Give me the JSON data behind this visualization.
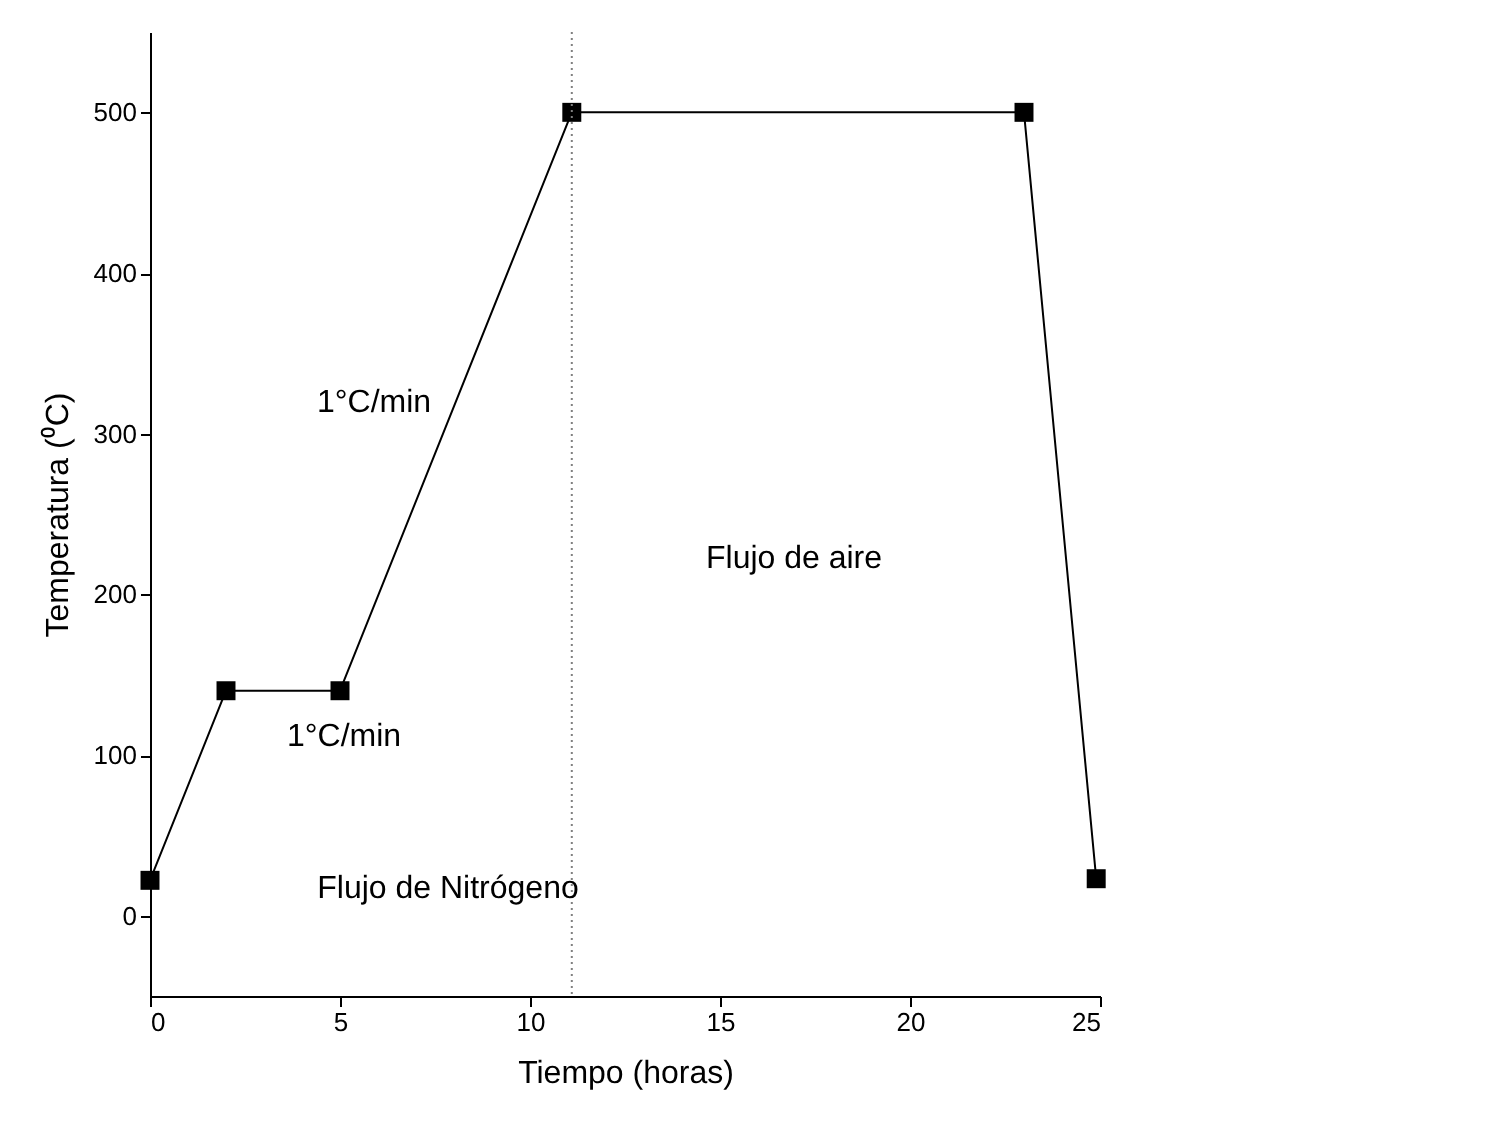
{
  "chart_data": {
    "type": "line",
    "xlabel": "Tiempo (horas)",
    "ylabel": "Temperatura (⁰C)",
    "x": [
      0,
      2,
      5,
      11.1,
      23,
      24.9
    ],
    "series": [
      {
        "color": "#000000",
        "values": [
          22,
          140,
          140,
          500,
          500,
          23
        ]
      }
    ],
    "marker": "square",
    "line_style": "solid",
    "xlim": [
      0,
      25
    ],
    "xticks": [
      0,
      5,
      10,
      15,
      20,
      25
    ],
    "ylim": [
      -50,
      550
    ],
    "yticks": [
      0,
      100,
      200,
      300,
      400,
      500
    ],
    "grid": false,
    "ref_lines": [
      {
        "axis": "x",
        "value": 11.1,
        "color": "#808080",
        "line_style": "dotted"
      }
    ],
    "annotations": [
      "1°C/min",
      "1°C/min",
      "Flujo de Nitrógeno",
      "Flujo de aire"
    ]
  }
}
